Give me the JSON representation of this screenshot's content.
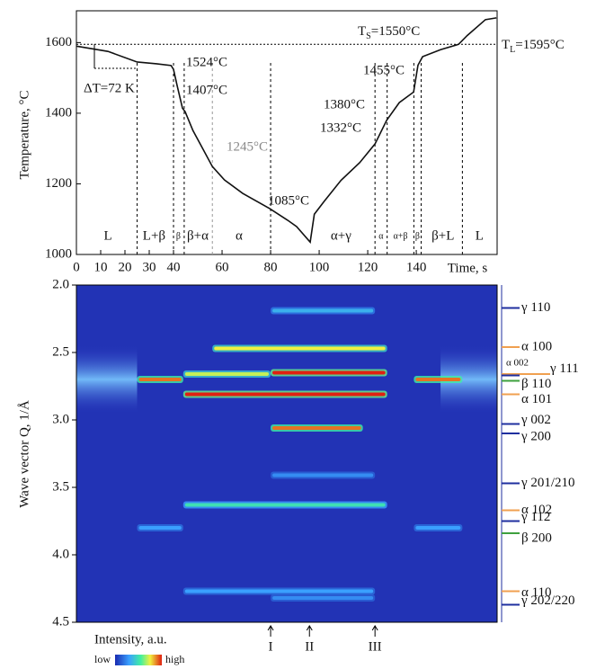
{
  "chart_data": [
    {
      "type": "line",
      "x_label": "Time, s",
      "y_label": "Temperature, °C",
      "xlim": [
        0,
        173.3
      ],
      "ylim": [
        1000,
        1690
      ],
      "xticks": [
        0,
        10,
        20,
        30,
        40,
        60,
        80,
        100,
        120,
        140
      ],
      "yticks": [
        1000,
        1200,
        1400,
        1600
      ],
      "x": [
        0,
        13,
        25,
        33,
        39,
        40,
        41.5,
        43.7,
        44.8,
        48,
        52,
        56,
        61,
        68.5,
        79.6,
        87,
        90.7,
        96.3,
        98,
        102,
        109,
        116.7,
        123,
        127.8,
        133,
        138.9,
        140.7,
        142.6,
        150,
        157.4,
        161,
        168.5,
        173
      ],
      "series": [
        {
          "color": "#111111",
          "values": [
            1590,
            1575,
            1545,
            1540,
            1535,
            1524,
            1478,
            1414,
            1404,
            1351,
            1300,
            1249,
            1211,
            1173,
            1130,
            1097,
            1079,
            1035,
            1114,
            1150,
            1210,
            1260,
            1313,
            1380,
            1430,
            1460,
            1536,
            1560,
            1580,
            1595,
            1620,
            1665,
            1670
          ]
        }
      ],
      "reference_line": 1595,
      "phase_boundaries": [
        25,
        40,
        44.4,
        56,
        80,
        123,
        128,
        139,
        142,
        159
      ],
      "phases": [
        {
          "label": "L",
          "t": 13
        },
        {
          "label": "L+β",
          "t": 32
        },
        {
          "label": "β",
          "t": 42
        },
        {
          "label": "β+α",
          "t": 50
        },
        {
          "label": "α",
          "t": 67
        },
        {
          "label": "α+γ",
          "t": 109
        },
        {
          "label": "α",
          "t": 125.5
        },
        {
          "label": "α+β",
          "t": 133.5
        },
        {
          "label": "β",
          "t": 140.5
        },
        {
          "label": "β+L",
          "t": 151
        },
        {
          "label": "L",
          "t": 166
        }
      ],
      "annotations": [
        {
          "text": "1524°C"
        },
        {
          "text": "1407°C"
        },
        {
          "text": "1245°C",
          "color": "#888888"
        },
        {
          "text": "1085°C"
        },
        {
          "text": "1455°C"
        },
        {
          "text": "1380°C"
        },
        {
          "text": "1332°C"
        },
        {
          "text": "ΔT=72 K"
        }
      ],
      "solidus": {
        "symbol": "T",
        "subscript": "S",
        "text": "=1550°C"
      },
      "liquidus": {
        "symbol": "T",
        "subscript": "L",
        "text": "=1595°C"
      }
    },
    {
      "type": "heatmap",
      "y_label": "Wave vector Q, 1/Å",
      "xlim": [
        0,
        173.3
      ],
      "ylim": [
        2.0,
        4.5
      ],
      "yticks": [
        {
          "value": 2,
          "label": "2.0"
        },
        2.5,
        {
          "value": 3,
          "label": "3.0"
        },
        3.5,
        {
          "value": 4,
          "label": "4.0"
        },
        4.5
      ],
      "bands": [
        {
          "q": 2.19,
          "t0": 80,
          "t1": 123,
          "level": 0.35
        },
        {
          "q": 2.47,
          "t0": 56,
          "t1": 128,
          "level": 0.75
        },
        {
          "q": 2.66,
          "t0": 44,
          "t1": 80,
          "level": 0.7
        },
        {
          "q": 2.65,
          "t0": 80,
          "t1": 128,
          "level": 1.0
        },
        {
          "q": 2.7,
          "t0": 25,
          "t1": 44,
          "level": 0.9
        },
        {
          "q": 2.7,
          "t0": 139,
          "t1": 159,
          "level": 0.9
        },
        {
          "q": 2.81,
          "t0": 44,
          "t1": 128,
          "level": 1.0
        },
        {
          "q": 3.06,
          "t0": 80,
          "t1": 118,
          "level": 0.9
        },
        {
          "q": 3.41,
          "t0": 80,
          "t1": 123,
          "level": 0.25
        },
        {
          "q": 3.63,
          "t0": 44,
          "t1": 128,
          "level": 0.5
        },
        {
          "q": 3.8,
          "t0": 25,
          "t1": 44,
          "level": 0.3
        },
        {
          "q": 3.8,
          "t0": 139,
          "t1": 159,
          "level": 0.3
        },
        {
          "q": 4.27,
          "t0": 44,
          "t1": 123,
          "level": 0.3
        },
        {
          "q": 4.32,
          "t0": 80,
          "t1": 123,
          "level": 0.25
        }
      ],
      "reflections": [
        {
          "label": "γ 110",
          "q": 2.17,
          "color": "#1f2f9f"
        },
        {
          "label": "α 100",
          "q": 2.46,
          "color": "#f0a050"
        },
        {
          "label": "α 002",
          "q": 2.66,
          "color": "#f0a050"
        },
        {
          "label": "γ 111",
          "q": 2.67,
          "color": "#1f2f9f"
        },
        {
          "label": "β 110",
          "q": 2.71,
          "color": "#3ea03e"
        },
        {
          "label": "α 101",
          "q": 2.81,
          "color": "#f0a050"
        },
        {
          "label": "γ 002",
          "q": 3.03,
          "color": "#1f2f9f"
        },
        {
          "label": "γ 200",
          "q": 3.1,
          "color": "#1f2f9f"
        },
        {
          "label": "γ 201/210",
          "q": 3.47,
          "color": "#1f2f9f"
        },
        {
          "label": "α 102",
          "q": 3.67,
          "color": "#f0a050"
        },
        {
          "label": "γ 112",
          "q": 3.75,
          "color": "#1f2f9f"
        },
        {
          "label": "β 200",
          "q": 3.84,
          "color": "#3ea03e"
        },
        {
          "label": "α 110",
          "q": 4.27,
          "color": "#f0a050"
        },
        {
          "label": "γ 202/220",
          "q": 4.37,
          "color": "#1f2f9f"
        }
      ],
      "markers": [
        {
          "label": "I",
          "t": 80
        },
        {
          "label": "II",
          "t": 96
        },
        {
          "label": "III",
          "t": 123
        }
      ],
      "colorbar": {
        "label": "Intensity, a.u.",
        "low": "low",
        "high": "high"
      }
    }
  ]
}
